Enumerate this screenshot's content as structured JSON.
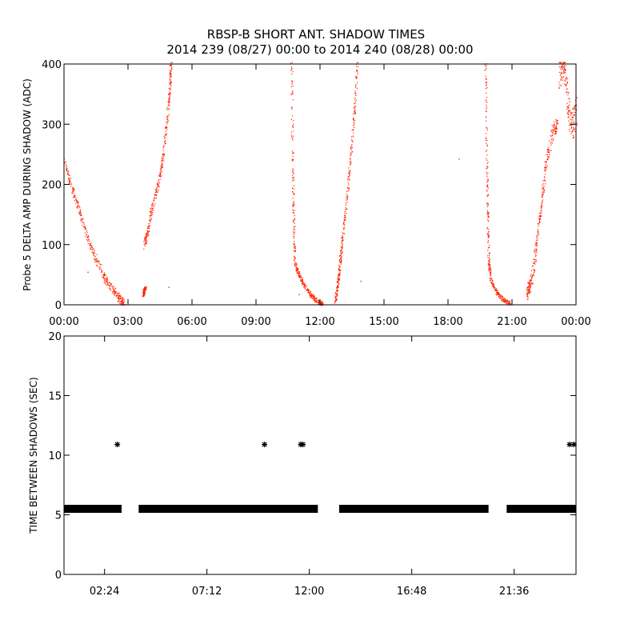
{
  "title_line1": "RBSP-B SHORT ANT. SHADOW TIMES",
  "title_line2": "2014 239 (08/27) 00:00 to 2014 240 (08/28) 00:00",
  "colors": {
    "top_series": "#ff2200",
    "bottom_series": "#000000",
    "frame": "#000000"
  },
  "chart_data": [
    {
      "type": "scatter",
      "ylabel": "Probe 5 DELTA AMP DURING SHADOW (ADC)",
      "xlabel": "",
      "xlim": [
        0,
        24
      ],
      "ylim": [
        0,
        400
      ],
      "x_unit": "hours",
      "xticks": [
        0,
        3,
        6,
        9,
        12,
        15,
        18,
        21,
        24
      ],
      "xtick_labels": [
        "00:00",
        "03:00",
        "06:00",
        "09:00",
        "12:00",
        "15:00",
        "18:00",
        "21:00",
        "00:00"
      ],
      "yticks": [
        0,
        100,
        200,
        300,
        400
      ],
      "ytick_labels": [
        "0",
        "100",
        "200",
        "300",
        "400"
      ],
      "series": [
        {
          "color": "#ff2200",
          "segments": [
            {
              "points": [
                [
                  0.0,
                  240
                ],
                [
                  0.3,
                  200
                ],
                [
                  0.7,
                  160
                ],
                [
                  1.1,
                  110
                ],
                [
                  1.5,
                  75
                ],
                [
                  1.9,
                  45
                ],
                [
                  2.3,
                  25
                ],
                [
                  2.6,
                  10
                ],
                [
                  2.8,
                  4
                ]
              ],
              "spread": 14
            },
            {
              "points": [
                [
                  3.7,
                  15
                ],
                [
                  3.75,
                  25
                ],
                [
                  3.8,
                  30
                ]
              ],
              "spread": 3
            },
            {
              "points": [
                [
                  3.75,
                  100
                ],
                [
                  3.9,
                  120
                ],
                [
                  4.1,
                  160
                ],
                [
                  4.4,
                  200
                ],
                [
                  4.6,
                  240
                ],
                [
                  4.8,
                  300
                ],
                [
                  4.95,
                  360
                ],
                [
                  5.0,
                  405
                ]
              ],
              "spread": 14
            },
            {
              "points": [
                [
                  10.65,
                  405
                ],
                [
                  10.7,
                  250
                ],
                [
                  10.75,
                  150
                ],
                [
                  10.8,
                  70
                ],
                [
                  11.0,
                  50
                ],
                [
                  11.3,
                  30
                ],
                [
                  11.6,
                  15
                ],
                [
                  11.9,
                  5
                ],
                [
                  12.1,
                  2
                ]
              ],
              "spread": 8
            },
            {
              "points": [
                [
                  12.7,
                  5
                ],
                [
                  12.8,
                  30
                ],
                [
                  12.9,
                  60
                ],
                [
                  13.0,
                  100
                ],
                [
                  13.2,
                  160
                ],
                [
                  13.4,
                  240
                ],
                [
                  13.6,
                  320
                ],
                [
                  13.75,
                  405
                ]
              ],
              "spread": 10
            },
            {
              "points": [
                [
                  19.75,
                  405
                ],
                [
                  19.8,
                  250
                ],
                [
                  19.85,
                  150
                ],
                [
                  19.9,
                  70
                ],
                [
                  20.0,
                  40
                ],
                [
                  20.3,
                  20
                ],
                [
                  20.6,
                  8
                ],
                [
                  20.9,
                  3
                ]
              ],
              "spread": 8
            },
            {
              "points": [
                [
                  21.7,
                  20
                ],
                [
                  21.8,
                  30
                ],
                [
                  22.0,
                  60
                ],
                [
                  22.2,
                  120
                ],
                [
                  22.4,
                  180
                ],
                [
                  22.6,
                  240
                ],
                [
                  22.9,
                  290
                ],
                [
                  23.1,
                  300
                ]
              ],
              "spread": 22
            },
            {
              "points": [
                [
                  23.2,
                  380
                ],
                [
                  23.4,
                  400
                ],
                [
                  23.6,
                  340
                ],
                [
                  23.8,
                  300
                ],
                [
                  24.0,
                  320
                ]
              ],
              "spread": 55
            }
          ],
          "isolated_points": [
            [
              1.1,
              55
            ],
            [
              4.9,
              30
            ],
            [
              13.9,
              40
            ],
            [
              18.5,
              243
            ],
            [
              11.0,
              18
            ]
          ]
        }
      ]
    },
    {
      "type": "scatter",
      "ylabel": "TIME BETWEEN SHADOWS (SEC)",
      "xlabel": "",
      "xlim": [
        0.5,
        24.5
      ],
      "ylim": [
        0,
        20
      ],
      "x_unit": "hours",
      "xticks": [
        2.4,
        7.2,
        12.0,
        16.8,
        21.6
      ],
      "xtick_labels": [
        "02:24",
        "07:12",
        "12:00",
        "16:48",
        "21:36"
      ],
      "yticks": [
        0,
        5,
        10,
        15,
        20
      ],
      "ytick_labels": [
        "0",
        "5",
        "10",
        "15",
        "20"
      ],
      "series": [
        {
          "color": "#000000",
          "marker": "asterisk",
          "baseline_value": 5.5,
          "baseline_ranges": [
            [
              0.5,
              3.2
            ],
            [
              4.0,
              12.4
            ],
            [
              13.4,
              20.4
            ],
            [
              21.25,
              24.5
            ]
          ],
          "outliers": [
            [
              3.0,
              10.9
            ],
            [
              9.9,
              10.9
            ],
            [
              11.6,
              10.9
            ],
            [
              11.7,
              10.9
            ],
            [
              24.2,
              10.9
            ],
            [
              24.4,
              10.9
            ]
          ]
        }
      ]
    }
  ]
}
